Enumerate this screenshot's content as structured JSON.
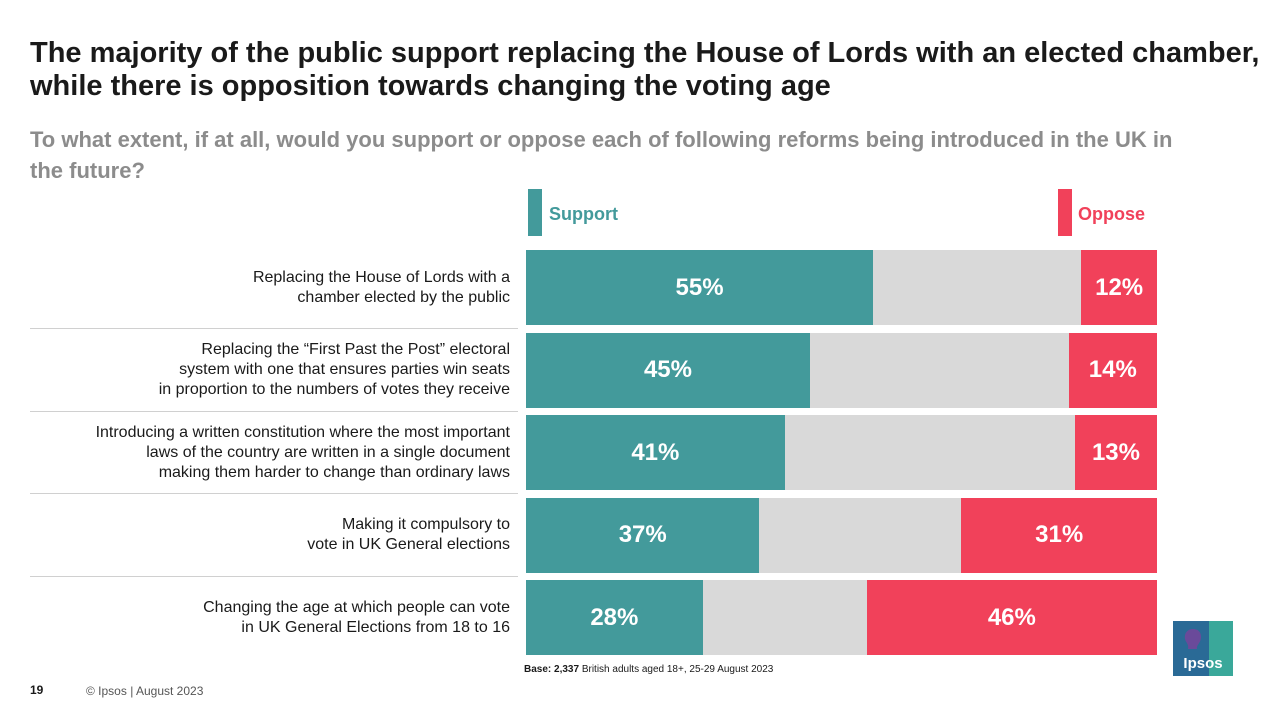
{
  "title": "The majority of the public support replacing the House of Lords with an elected chamber, while there is opposition towards changing the voting age",
  "subtitle": "To what extent, if at all, would you support or oppose each of following reforms being introduced in the UK in the future?",
  "colors": {
    "support": "#439a9b",
    "oppose": "#f1415a",
    "neutral": "#d9d9d9"
  },
  "chart_data": {
    "type": "bar",
    "orientation": "horizontal-stacked",
    "xlim": [
      0,
      100
    ],
    "categories": [
      [
        "Replacing the House of Lords with a",
        "chamber elected by the public"
      ],
      [
        "Replacing the “First Past the Post” electoral",
        "system with one that ensures parties win seats",
        "in proportion to the numbers of votes they receive"
      ],
      [
        "Introducing a written constitution where the most important",
        "laws of the country are written in a single document",
        "making them harder to change than ordinary laws"
      ],
      [
        "Making it compulsory to",
        "vote in UK General elections"
      ],
      [
        "Changing the age at which people can vote",
        "in UK General Elections from 18 to 16"
      ]
    ],
    "series": [
      {
        "name": "Support",
        "values": [
          55,
          45,
          41,
          37,
          28
        ],
        "labels": [
          "55%",
          "45%",
          "41%",
          "37%",
          "28%"
        ]
      },
      {
        "name": "Oppose",
        "values": [
          12,
          14,
          13,
          31,
          46
        ],
        "labels": [
          "12%",
          "14%",
          "13%",
          "31%",
          "46%"
        ]
      }
    ],
    "legend": "top"
  },
  "base_note": {
    "bold": "Base: 2,337",
    "text": " British adults aged 18+, 25-29 August 2023"
  },
  "footer": {
    "page_number": "19",
    "copyright": "© Ipsos | August 2023"
  },
  "logo": {
    "text": "Ipsos"
  }
}
